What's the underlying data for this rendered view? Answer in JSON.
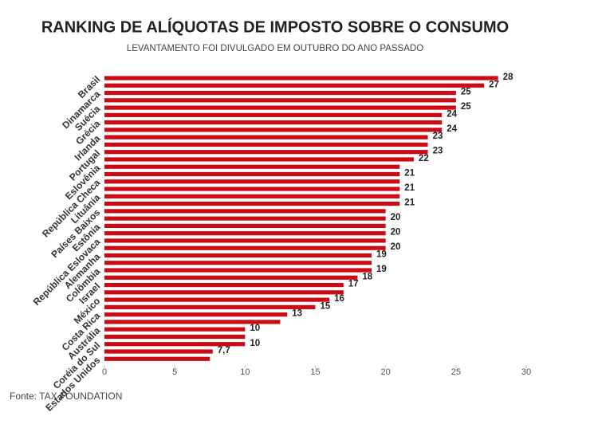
{
  "chart_data": {
    "type": "hbar",
    "title": "RANKING DE ALÍQUOTAS DE IMPOSTO SOBRE O CONSUMO",
    "subtitle": "LEVANTAMENTO FOI DIVULGADO EM OUTUBRO DO ANO PASSADO",
    "source": "Fonte: TAX FOUNDATION",
    "color": "#cc0a14",
    "categories": [
      "Brasil",
      null,
      "Dinamarca",
      null,
      "Suécia",
      null,
      "Grécia",
      null,
      "Irlanda",
      null,
      "Portugal",
      null,
      "Eslovênia",
      null,
      "República Checa",
      null,
      "Lituânia",
      null,
      "Países Baixos",
      null,
      "Estônia",
      null,
      "República Eslovaca",
      null,
      "Alemanha",
      null,
      "Colômbia",
      null,
      "Israel",
      null,
      "México",
      null,
      "Costa Rica",
      null,
      "Austrália",
      null,
      "Coréia do Sul",
      null,
      "Estados Unidos"
    ],
    "values": [
      28,
      27,
      25,
      25,
      25,
      24,
      24,
      24,
      23,
      23,
      23,
      22,
      21,
      21,
      21,
      21,
      21,
      21,
      20,
      20,
      20,
      20,
      20,
      20,
      19,
      19,
      19,
      18,
      17,
      17,
      16,
      15,
      13,
      12.5,
      10,
      10,
      10,
      7.7,
      7.5
    ],
    "value_labels": [
      "28",
      "27",
      "25",
      null,
      "25",
      "24",
      null,
      "24",
      "23",
      null,
      "23",
      "22",
      null,
      "21",
      null,
      "21",
      null,
      "21",
      null,
      "20",
      null,
      "20",
      null,
      "20",
      "19",
      null,
      "19",
      "18",
      "17",
      null,
      "16",
      "15",
      "13",
      null,
      "10",
      null,
      "10",
      "7,7",
      null
    ],
    "xlim": [
      0,
      30
    ],
    "xticks": [
      0,
      5,
      10,
      15,
      20,
      25,
      30
    ]
  }
}
